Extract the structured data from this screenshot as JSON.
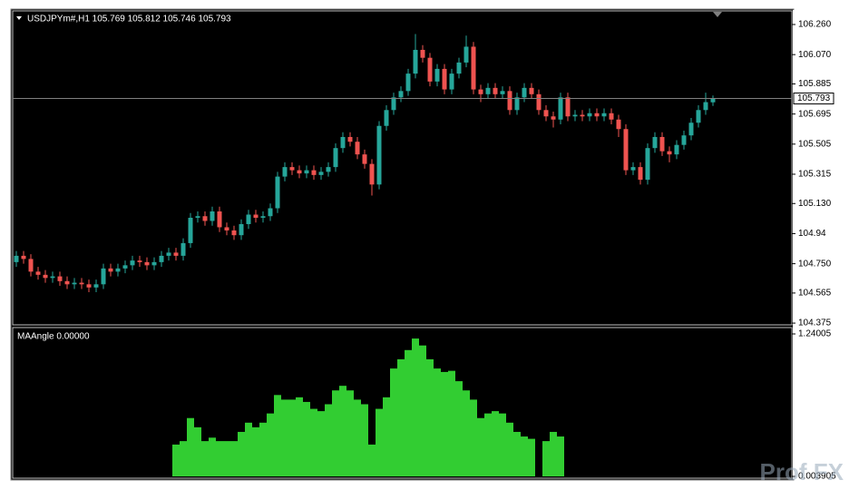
{
  "chart_data": [
    {
      "type": "candlestick",
      "title": "USDJPYm#,H1  105.769 105.812 105.746 105.793",
      "up_color": "#26a69a",
      "down_color": "#ef5350",
      "open": [
        104.76,
        104.8,
        104.78,
        104.7,
        104.68,
        104.66,
        104.67,
        104.64,
        104.62,
        104.63,
        104.62,
        104.6,
        104.62,
        104.72,
        104.7,
        104.72,
        104.74,
        104.77,
        104.76,
        104.74,
        104.76,
        104.8,
        104.82,
        104.8,
        104.88,
        105.04,
        105.05,
        105.02,
        105.08,
        104.98,
        104.96,
        104.93,
        105.0,
        105.06,
        105.04,
        105.05,
        105.1,
        105.3,
        105.36,
        105.34,
        105.32,
        105.34,
        105.31,
        105.33,
        105.36,
        105.48,
        105.55,
        105.52,
        105.44,
        105.38,
        105.25,
        105.62,
        105.72,
        105.8,
        105.84,
        105.95,
        106.1,
        106.05,
        105.9,
        105.98,
        105.85,
        105.95,
        106.02,
        106.12,
        105.85,
        105.82,
        105.86,
        105.82,
        105.84,
        105.72,
        105.8,
        105.86,
        105.82,
        105.72,
        105.68,
        105.66,
        105.8,
        105.68,
        105.69,
        105.68,
        105.7,
        105.68,
        105.7,
        105.66,
        105.6,
        105.34,
        105.36,
        105.28,
        105.48,
        105.55,
        105.46,
        105.44,
        105.5,
        105.56,
        105.64,
        105.72,
        105.769
      ],
      "high": [
        104.83,
        104.83,
        104.81,
        104.73,
        104.71,
        104.7,
        104.7,
        104.67,
        104.66,
        104.66,
        104.65,
        104.65,
        104.75,
        104.75,
        104.75,
        104.77,
        104.8,
        104.8,
        104.79,
        104.79,
        104.83,
        104.85,
        104.85,
        104.91,
        105.07,
        105.08,
        105.08,
        105.11,
        105.11,
        105.01,
        104.99,
        105.03,
        105.09,
        105.09,
        105.08,
        105.13,
        105.33,
        105.39,
        105.39,
        105.37,
        105.37,
        105.37,
        105.36,
        105.39,
        105.51,
        105.58,
        105.58,
        105.55,
        105.47,
        105.41,
        105.65,
        105.75,
        105.83,
        105.87,
        105.98,
        106.2,
        106.13,
        106.08,
        106.01,
        106.01,
        105.98,
        106.05,
        106.19,
        106.15,
        105.88,
        105.89,
        105.89,
        105.87,
        105.87,
        105.83,
        105.89,
        105.89,
        105.85,
        105.75,
        105.71,
        105.83,
        105.83,
        105.72,
        105.72,
        105.73,
        105.73,
        105.73,
        105.73,
        105.69,
        105.63,
        105.39,
        105.39,
        105.51,
        105.58,
        105.58,
        105.49,
        105.53,
        105.59,
        105.67,
        105.75,
        105.83,
        105.812
      ],
      "low": [
        104.73,
        104.75,
        104.67,
        104.65,
        104.63,
        104.63,
        104.61,
        104.59,
        104.59,
        104.59,
        104.57,
        104.57,
        104.59,
        104.67,
        104.67,
        104.69,
        104.71,
        104.73,
        104.71,
        104.71,
        104.73,
        104.77,
        104.77,
        104.77,
        104.85,
        105.01,
        104.99,
        104.99,
        104.95,
        104.93,
        104.9,
        104.9,
        104.97,
        105.01,
        105.01,
        105.02,
        105.07,
        105.27,
        105.31,
        105.29,
        105.29,
        105.28,
        105.28,
        105.3,
        105.33,
        105.45,
        105.49,
        105.41,
        105.35,
        105.18,
        105.22,
        105.59,
        105.69,
        105.77,
        105.81,
        105.92,
        106.02,
        105.87,
        105.87,
        105.82,
        105.82,
        105.92,
        105.99,
        105.82,
        105.77,
        105.79,
        105.79,
        105.79,
        105.69,
        105.69,
        105.77,
        105.79,
        105.69,
        105.65,
        105.61,
        105.63,
        105.65,
        105.65,
        105.65,
        105.65,
        105.65,
        105.65,
        105.63,
        105.55,
        105.31,
        105.31,
        105.25,
        105.25,
        105.45,
        105.43,
        105.39,
        105.41,
        105.47,
        105.53,
        105.61,
        105.69,
        105.746
      ],
      "close": [
        104.8,
        104.78,
        104.7,
        104.68,
        104.66,
        104.67,
        104.64,
        104.62,
        104.63,
        104.62,
        104.6,
        104.62,
        104.72,
        104.7,
        104.72,
        104.74,
        104.77,
        104.76,
        104.74,
        104.76,
        104.8,
        104.82,
        104.8,
        104.88,
        105.04,
        105.05,
        105.02,
        105.08,
        104.98,
        104.96,
        104.93,
        105.0,
        105.06,
        105.04,
        105.05,
        105.1,
        105.3,
        105.36,
        105.34,
        105.32,
        105.34,
        105.31,
        105.33,
        105.36,
        105.48,
        105.55,
        105.52,
        105.44,
        105.38,
        105.25,
        105.62,
        105.72,
        105.8,
        105.84,
        105.95,
        106.1,
        106.05,
        105.9,
        105.98,
        105.85,
        105.95,
        106.02,
        106.12,
        105.85,
        105.82,
        105.86,
        105.82,
        105.84,
        105.72,
        105.8,
        105.86,
        105.82,
        105.72,
        105.68,
        105.66,
        105.8,
        105.68,
        105.69,
        105.68,
        105.7,
        105.68,
        105.7,
        105.66,
        105.6,
        105.34,
        105.36,
        105.28,
        105.48,
        105.55,
        105.46,
        105.44,
        105.5,
        105.56,
        105.64,
        105.72,
        105.77,
        105.793
      ],
      "last_price": 105.793,
      "ylim": [
        104.364,
        106.346
      ],
      "yticks": [
        104.375,
        104.565,
        {
          "value": 104.75,
          "label": "104.750"
        },
        104.94,
        {
          "value": 105.13,
          "label": "105.130"
        },
        105.315,
        105.505,
        105.695,
        105.885,
        {
          "value": 106.07,
          "label": "106.070"
        },
        {
          "value": 106.26,
          "label": "106.260"
        }
      ],
      "watermark": "Prof FX"
    },
    {
      "type": "bar",
      "title": "MAAngle 0.00000",
      "color": "#32cd32",
      "values": [
        null,
        null,
        null,
        null,
        null,
        null,
        null,
        null,
        null,
        null,
        null,
        null,
        null,
        null,
        null,
        null,
        null,
        null,
        null,
        null,
        null,
        null,
        0.28,
        0.31,
        0.51,
        0.43,
        0.31,
        0.34,
        0.31,
        0.31,
        0.31,
        0.39,
        0.47,
        0.43,
        0.47,
        0.55,
        0.71,
        0.67,
        0.67,
        0.69,
        0.65,
        0.59,
        0.57,
        0.63,
        0.75,
        0.79,
        0.75,
        0.67,
        0.63,
        0.28,
        0.59,
        0.69,
        0.94,
        1.02,
        1.1,
        1.2,
        1.14,
        1.02,
        0.94,
        0.91,
        0.92,
        0.83,
        0.75,
        0.67,
        0.51,
        0.55,
        0.57,
        0.55,
        0.47,
        0.39,
        0.35,
        0.33,
        null,
        0.31,
        0.39,
        0.35,
        null,
        null,
        null,
        null,
        null,
        null,
        null,
        null,
        null,
        null,
        null,
        null,
        null,
        null,
        null,
        null,
        null,
        null,
        null,
        null,
        null
      ],
      "ylim": [
        0.003905,
        1.24005
      ],
      "yticks": [
        0.003905,
        1.24005
      ]
    }
  ]
}
